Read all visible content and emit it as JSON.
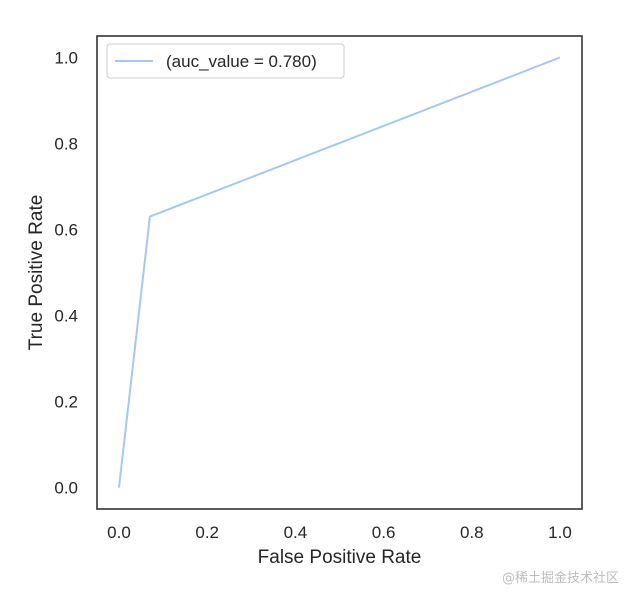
{
  "chart_data": {
    "type": "line",
    "title": "",
    "xlabel": "False Positive Rate",
    "ylabel": "True Positive Rate",
    "xlim": [
      -0.05,
      1.05
    ],
    "ylim": [
      -0.05,
      1.05
    ],
    "xticks": [
      0.0,
      0.2,
      0.4,
      0.6,
      0.8,
      1.0
    ],
    "yticks": [
      0.0,
      0.2,
      0.4,
      0.6,
      0.8,
      1.0
    ],
    "xtick_labels": [
      "0.0",
      "0.2",
      "0.4",
      "0.6",
      "0.8",
      "1.0"
    ],
    "ytick_labels": [
      "0.0",
      "0.2",
      "0.4",
      "0.6",
      "0.8",
      "1.0"
    ],
    "grid": false,
    "legend_position": "top-left",
    "series": [
      {
        "name": "(auc_value = 0.780)",
        "color": "#a1c9f4",
        "x": [
          0.0,
          0.07,
          1.0
        ],
        "y": [
          0.0,
          0.63,
          1.0
        ]
      }
    ]
  },
  "watermark": "@稀土掘金技术社区"
}
